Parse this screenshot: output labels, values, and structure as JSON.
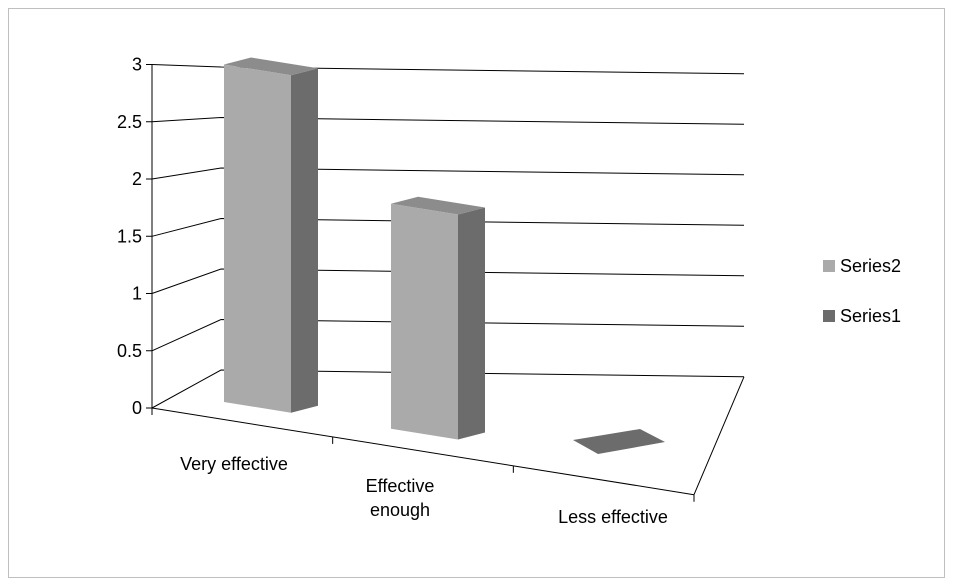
{
  "chart_data": {
    "type": "bar",
    "title": "",
    "xlabel": "",
    "ylabel": "",
    "categories": [
      "Very effective",
      "Effective enough",
      "Less effective"
    ],
    "category_label_lines": [
      [
        "Very effective"
      ],
      [
        "Effective",
        "enough"
      ],
      [
        "Less effective"
      ]
    ],
    "y_ticks": [
      "0",
      "0.5",
      "1",
      "1.5",
      "2",
      "2.5",
      "3"
    ],
    "ylim": [
      0,
      3
    ],
    "grid": true,
    "three_d": true,
    "legend_position": "right",
    "series": [
      {
        "name": "Series2",
        "values": [
          3,
          2,
          0
        ],
        "color": "#aaaaaa"
      },
      {
        "name": "Series1",
        "values": [
          0,
          0,
          0
        ],
        "color": "#6c6c6c"
      }
    ],
    "colors": {
      "bar_front": "#aaaaaa",
      "bar_side": "#6c6c6c",
      "bar_top": "#8c8c8c",
      "floor_marker": "#6c6c6c"
    }
  }
}
